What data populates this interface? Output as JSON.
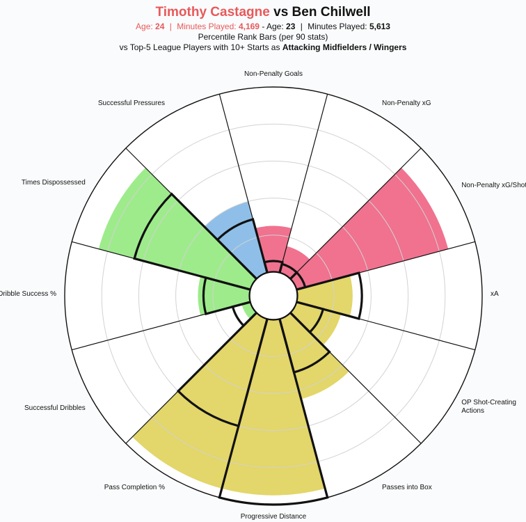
{
  "header": {
    "player1": "Timothy Castagne",
    "vs": "vs",
    "player2": "Ben Chilwell",
    "p1_age_label": "Age:",
    "p1_age": "24",
    "p1_minutes_label": "Minutes Played:",
    "p1_minutes": "4,169",
    "dash": "-",
    "p2_age_label": "Age:",
    "p2_age": "23",
    "p2_minutes_label": "Minutes Played:",
    "p2_minutes": "5,613",
    "separator": "|",
    "subtitle1": "Percentile Rank Bars (per 90 stats)",
    "subtitle2_prefix": "vs Top-5 League Players with 10+ Starts as",
    "subtitle2_bold": "Attacking Midfielders / Wingers"
  },
  "chart_data": {
    "type": "polar-bar",
    "title": "Timothy Castagne vs Ben Chilwell",
    "rmax": 100,
    "grid_rings": [
      20,
      40,
      60,
      80,
      100
    ],
    "categories": [
      "Non-Penalty Goals",
      "Non-Penalty xG",
      "Non-Penalty xG/Shot",
      "xA",
      "OP Shot-Creating Actions",
      "Passes into Box",
      "Progressive Distance",
      "Pass Completion %",
      "Successful Dribbles",
      "Dribble Success %",
      "Times Dispossessed",
      "Successful Pressures"
    ],
    "label_lines": [
      [
        "Non-Penalty Goals"
      ],
      [
        "Non-Penalty xG"
      ],
      [
        "Non-Penalty xG/Shot"
      ],
      [
        "xA"
      ],
      [
        "OP Shot-Creating",
        "Actions"
      ],
      [
        "Passes into Box"
      ],
      [
        "Progressive Distance"
      ],
      [
        "Pass Completion %"
      ],
      [
        "Successful Dribbles"
      ],
      [
        "Dribble Success %"
      ],
      [
        "Times Dispossessed"
      ],
      [
        "Successful Pressures"
      ]
    ],
    "series": [
      {
        "name": "Timothy Castagne",
        "values": [
          25,
          15,
          85,
          30,
          25,
          45,
          95,
          95,
          5,
          28,
          85,
          40
        ]
      },
      {
        "name": "Ben Chilwell",
        "values": [
          6,
          5,
          5,
          35,
          15,
          30,
          100,
          60,
          10,
          25,
          65,
          30
        ]
      }
    ],
    "colors": [
      "#f0728f",
      "#f0728f",
      "#f0728f",
      "#e3d66a",
      "#e3d66a",
      "#e3d66a",
      "#e3d66a",
      "#e3d66a",
      "#9eeb8c",
      "#9eeb8c",
      "#9eeb8c",
      "#8fbfe8"
    ],
    "grid": true,
    "legend": "none"
  }
}
